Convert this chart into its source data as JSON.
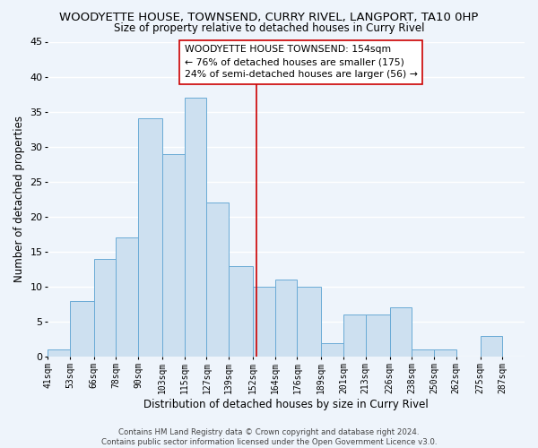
{
  "title": "WOODYETTE HOUSE, TOWNSEND, CURRY RIVEL, LANGPORT, TA10 0HP",
  "subtitle": "Size of property relative to detached houses in Curry Rivel",
  "xlabel": "Distribution of detached houses by size in Curry Rivel",
  "ylabel": "Number of detached properties",
  "bar_edges": [
    41,
    53,
    66,
    78,
    90,
    103,
    115,
    127,
    139,
    152,
    164,
    176,
    189,
    201,
    213,
    226,
    238,
    250,
    262,
    275,
    287,
    299
  ],
  "bar_heights": [
    1,
    8,
    14,
    17,
    34,
    29,
    37,
    22,
    13,
    10,
    11,
    10,
    2,
    6,
    6,
    7,
    1,
    1,
    0,
    3,
    0
  ],
  "bar_color": "#cde0f0",
  "bar_edgecolor": "#6aabd6",
  "reference_line_x": 154,
  "reference_line_color": "#cc0000",
  "ylim": [
    0,
    45
  ],
  "xlim": [
    41,
    299
  ],
  "xtick_labels": [
    "41sqm",
    "53sqm",
    "66sqm",
    "78sqm",
    "90sqm",
    "103sqm",
    "115sqm",
    "127sqm",
    "139sqm",
    "152sqm",
    "164sqm",
    "176sqm",
    "189sqm",
    "201sqm",
    "213sqm",
    "226sqm",
    "238sqm",
    "250sqm",
    "262sqm",
    "275sqm",
    "287sqm"
  ],
  "annotation_line1": "WOODYETTE HOUSE TOWNSEND: 154sqm",
  "annotation_line2": "← 76% of detached houses are smaller (175)",
  "annotation_line3": "24% of semi-detached houses are larger (56) →",
  "footer_text": "Contains HM Land Registry data © Crown copyright and database right 2024.\nContains public sector information licensed under the Open Government Licence v3.0.",
  "background_color": "#eef4fb",
  "grid_color": "#ffffff",
  "title_fontsize": 9.5,
  "subtitle_fontsize": 8.5,
  "tick_fontsize": 7,
  "ylabel_fontsize": 8.5,
  "xlabel_fontsize": 8.5,
  "annotation_fontsize": 7.8,
  "footer_fontsize": 6.2
}
